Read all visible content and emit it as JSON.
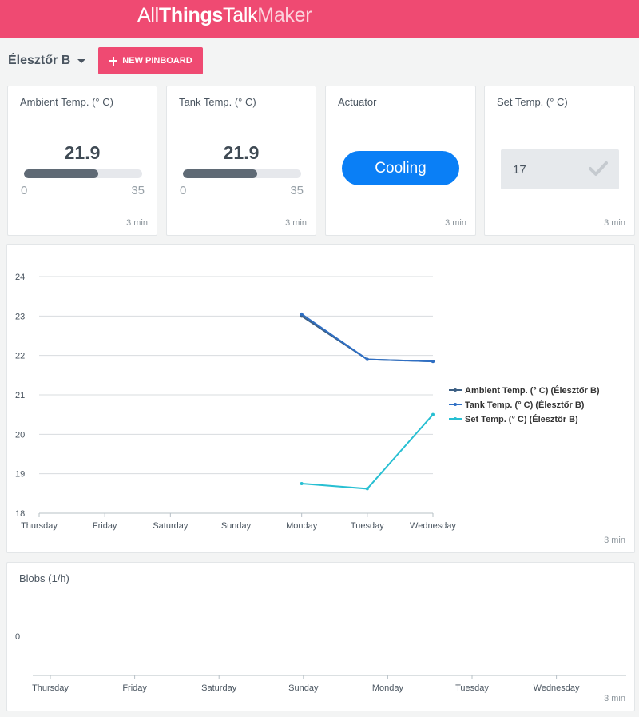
{
  "header": {
    "logo": {
      "part1": "All",
      "part2": "Things",
      "part3": "Talk",
      "part4": "Maker"
    },
    "brand_color": "#ef4a72"
  },
  "toolbar": {
    "pinboard_name": "Élesztőr B",
    "new_pinboard_label": "NEW PINBOARD"
  },
  "tiles": {
    "ambient": {
      "title": "Ambient Temp. (° C)",
      "value": "21.9",
      "fraction": 0.626,
      "min": "0",
      "max": "35",
      "time": "3 min"
    },
    "tank": {
      "title": "Tank Temp. (° C)",
      "value": "21.9",
      "fraction": 0.626,
      "min": "0",
      "max": "35",
      "time": "3 min"
    },
    "actuator": {
      "title": "Actuator",
      "state": "Cooling",
      "time": "3 min",
      "button_color": "#0a7ff6"
    },
    "setpoint": {
      "title": "Set Temp. (° C)",
      "value": "17",
      "time": "3 min"
    }
  },
  "chart_data": [
    {
      "type": "line",
      "categories": [
        "Thursday",
        "Friday",
        "Saturday",
        "Sunday",
        "Monday",
        "Tuesday",
        "Wednesday"
      ],
      "ylim": [
        18,
        24
      ],
      "yticks": [
        "24",
        "23",
        "22",
        "21",
        "20",
        "19",
        "18"
      ],
      "grid": true,
      "legend_position": "right",
      "series": [
        {
          "name": "Ambient Temp. (° C) (Élesztőr B)",
          "color": "#3c5f84",
          "values": [
            null,
            null,
            null,
            null,
            23.0,
            21.9,
            21.85
          ]
        },
        {
          "name": "Tank Temp. (° C) (Élesztőr B)",
          "color": "#2f6fc4",
          "values": [
            null,
            null,
            null,
            null,
            23.05,
            21.9,
            21.85
          ]
        },
        {
          "name": "Set Temp. (° C) (Élesztőr B)",
          "color": "#27bfd2",
          "values": [
            null,
            null,
            null,
            null,
            18.75,
            18.62,
            20.5
          ]
        }
      ],
      "time": "3 min"
    },
    {
      "type": "line",
      "title": "Blobs (1/h)",
      "categories": [
        "Thursday",
        "Friday",
        "Saturday",
        "Sunday",
        "Monday",
        "Tuesday",
        "Wednesday"
      ],
      "yticks": [
        "0"
      ],
      "series": [],
      "time": "3 min"
    }
  ]
}
